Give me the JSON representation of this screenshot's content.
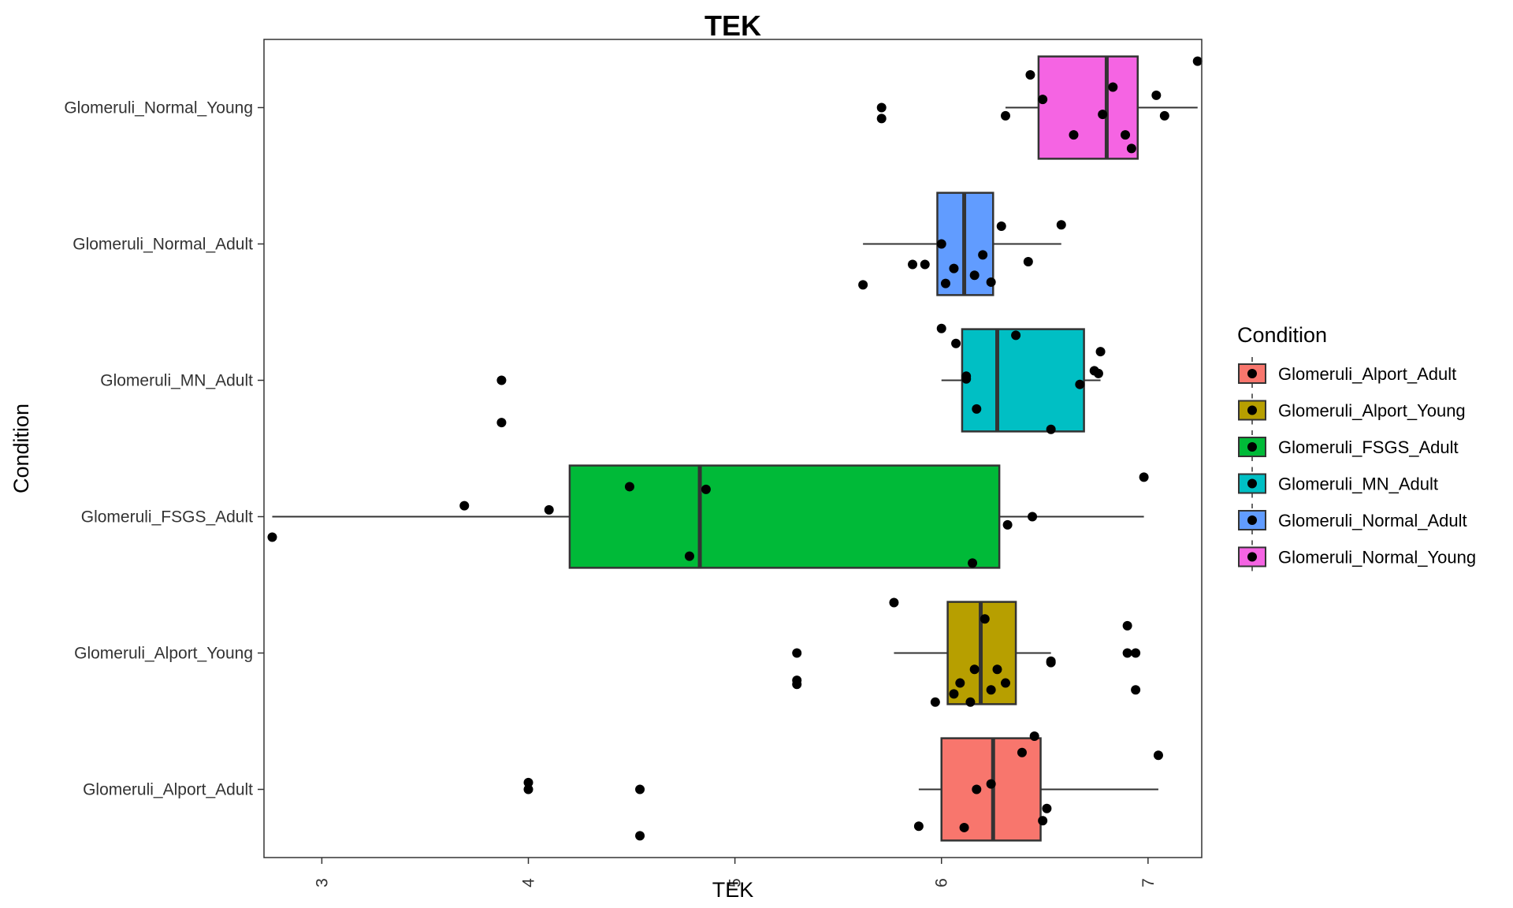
{
  "chart_data": {
    "type": "boxplot",
    "orientation": "horizontal",
    "title": "TEK",
    "xlabel": "TEK",
    "ylabel": "Condition",
    "xlim": [
      2.72,
      7.26
    ],
    "xticks": [
      3,
      4,
      5,
      6,
      7
    ],
    "xtick_labels": [
      "3",
      "4",
      "5",
      "6",
      "7"
    ],
    "grid": false,
    "legend_title": "Condition",
    "legend_position": "right",
    "categories": [
      "Glomeruli_Alport_Adult",
      "Glomeruli_Alport_Young",
      "Glomeruli_FSGS_Adult",
      "Glomeruli_MN_Adult",
      "Glomeruli_Normal_Adult",
      "Glomeruli_Normal_Young"
    ],
    "series": [
      {
        "name": "Glomeruli_Alport_Adult",
        "color": "#F8766D",
        "box": {
          "whisker_low": 5.89,
          "q1": 6.0,
          "median": 6.25,
          "q3": 6.48,
          "whisker_high": 7.05
        },
        "points": [
          [
            4.0,
            0.05
          ],
          [
            4.0,
            0.0
          ],
          [
            4.54,
            0.0
          ],
          [
            4.54,
            -0.34
          ],
          [
            5.89,
            -0.27
          ],
          [
            6.11,
            -0.28
          ],
          [
            6.17,
            0.0
          ],
          [
            6.24,
            0.04
          ],
          [
            6.39,
            0.27
          ],
          [
            6.45,
            0.39
          ],
          [
            6.49,
            -0.23
          ],
          [
            6.51,
            -0.14
          ],
          [
            7.05,
            0.25
          ]
        ]
      },
      {
        "name": "Glomeruli_Alport_Young",
        "color": "#B79F00",
        "box": {
          "whisker_low": 5.77,
          "q1": 6.03,
          "median": 6.19,
          "q3": 6.36,
          "whisker_high": 6.53
        },
        "points": [
          [
            5.3,
            0.0
          ],
          [
            5.3,
            -0.2
          ],
          [
            5.3,
            -0.23
          ],
          [
            5.77,
            0.37
          ],
          [
            5.97,
            -0.36
          ],
          [
            6.06,
            -0.3
          ],
          [
            6.09,
            -0.22
          ],
          [
            6.14,
            -0.36
          ],
          [
            6.16,
            -0.12
          ],
          [
            6.21,
            0.25
          ],
          [
            6.24,
            -0.27
          ],
          [
            6.27,
            -0.12
          ],
          [
            6.31,
            -0.22
          ],
          [
            6.53,
            -0.06
          ],
          [
            6.53,
            -0.07
          ],
          [
            6.9,
            0.2
          ],
          [
            6.9,
            0.0
          ],
          [
            6.94,
            0.0
          ],
          [
            6.94,
            -0.27
          ]
        ]
      },
      {
        "name": "Glomeruli_FSGS_Adult",
        "color": "#00BA38",
        "box": {
          "whisker_low": 2.76,
          "q1": 4.2,
          "median": 4.83,
          "q3": 6.28,
          "whisker_high": 6.98
        },
        "points": [
          [
            2.76,
            -0.15
          ],
          [
            3.69,
            0.08
          ],
          [
            4.1,
            0.05
          ],
          [
            4.49,
            0.22
          ],
          [
            4.78,
            -0.29
          ],
          [
            4.86,
            0.2
          ],
          [
            6.15,
            -0.34
          ],
          [
            6.32,
            -0.06
          ],
          [
            6.44,
            0.0
          ],
          [
            6.98,
            0.29
          ]
        ]
      },
      {
        "name": "Glomeruli_MN_Adult",
        "color": "#00BFC4",
        "box": {
          "whisker_low": 6.0,
          "q1": 6.1,
          "median": 6.27,
          "q3": 6.69,
          "whisker_high": 6.77
        },
        "points": [
          [
            3.87,
            0.0
          ],
          [
            3.87,
            -0.31
          ],
          [
            6.0,
            0.38
          ],
          [
            6.07,
            0.27
          ],
          [
            6.12,
            0.01
          ],
          [
            6.12,
            0.03
          ],
          [
            6.17,
            -0.21
          ],
          [
            6.36,
            0.33
          ],
          [
            6.53,
            -0.36
          ],
          [
            6.67,
            -0.03
          ],
          [
            6.74,
            0.07
          ],
          [
            6.76,
            0.05
          ],
          [
            6.77,
            0.21
          ]
        ]
      },
      {
        "name": "Glomeruli_Normal_Adult",
        "color": "#619CFF",
        "box": {
          "whisker_low": 5.62,
          "q1": 5.98,
          "median": 6.11,
          "q3": 6.25,
          "whisker_high": 6.58
        },
        "points": [
          [
            5.62,
            -0.3
          ],
          [
            5.86,
            -0.15
          ],
          [
            5.92,
            -0.15
          ],
          [
            6.0,
            0.0
          ],
          [
            6.02,
            -0.29
          ],
          [
            6.06,
            -0.18
          ],
          [
            6.16,
            -0.23
          ],
          [
            6.2,
            -0.08
          ],
          [
            6.24,
            -0.28
          ],
          [
            6.29,
            0.13
          ],
          [
            6.42,
            -0.13
          ],
          [
            6.58,
            0.14
          ]
        ]
      },
      {
        "name": "Glomeruli_Normal_Young",
        "color": "#F564E3",
        "box": {
          "whisker_low": 6.31,
          "q1": 6.47,
          "median": 6.8,
          "q3": 6.95,
          "whisker_high": 7.24
        },
        "points": [
          [
            5.71,
            0.0
          ],
          [
            5.71,
            -0.08
          ],
          [
            6.31,
            -0.06
          ],
          [
            6.43,
            0.24
          ],
          [
            6.49,
            0.06
          ],
          [
            6.64,
            -0.2
          ],
          [
            6.78,
            -0.05
          ],
          [
            6.83,
            0.15
          ],
          [
            6.89,
            -0.2
          ],
          [
            6.92,
            -0.3
          ],
          [
            7.04,
            0.09
          ],
          [
            7.08,
            -0.06
          ],
          [
            7.24,
            0.34
          ]
        ]
      }
    ]
  }
}
